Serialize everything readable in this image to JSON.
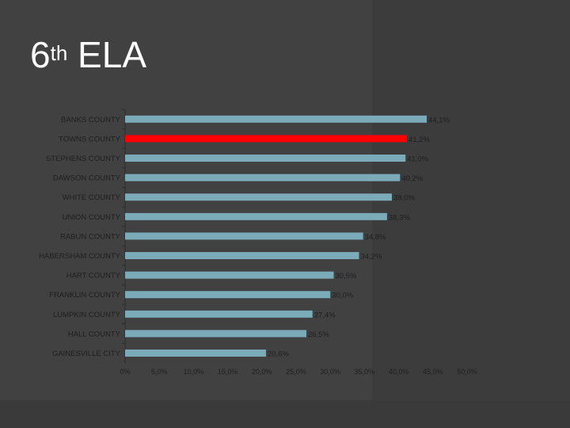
{
  "slide": {
    "title_number": "6",
    "title_sup": "th",
    "title_text": " ELA"
  },
  "colors": {
    "background": "#414141",
    "bar_default": "#7baab9",
    "bar_highlight": "#ff0000"
  },
  "chart_data": {
    "type": "bar",
    "orientation": "horizontal",
    "categories": [
      "BANKS COUNTY",
      "TOWNS COUNTY",
      "STEPHENS COUNTY",
      "DAWSON COUNTY",
      "WHITE COUNTY",
      "UNION COUNTY",
      "RABUN COUNTY",
      "HABERSHAM COUNTY",
      "HART COUNTY",
      "FRANKLIN COUNTY",
      "LUMPKIN COUNTY",
      "HALL COUNTY",
      "GAINESVILLE CITY"
    ],
    "values": [
      44.1,
      41.2,
      41.0,
      40.2,
      39.0,
      38.3,
      34.8,
      34.2,
      30.5,
      30.0,
      27.4,
      26.5,
      20.6
    ],
    "value_labels": [
      "44,1%",
      "41,2%",
      "41,0%",
      "40,2%",
      "39,0%",
      "38,3%",
      "34,8%",
      "34,2%",
      "30,5%",
      "30,0%",
      "27,4%",
      "26,5%",
      "20,6%"
    ],
    "highlight_category": "TOWNS COUNTY",
    "xlim": [
      0,
      50
    ],
    "x_ticks": [
      0,
      5,
      10,
      15,
      20,
      25,
      30,
      35,
      40,
      45,
      50
    ],
    "x_tick_labels": [
      "0%",
      "5,0%",
      "10,0%",
      "15,0%",
      "20,0%",
      "25,0%",
      "30,0%",
      "35,0%",
      "40,0%",
      "45,0%",
      "50,0%"
    ],
    "grid": false,
    "legend": "none"
  }
}
